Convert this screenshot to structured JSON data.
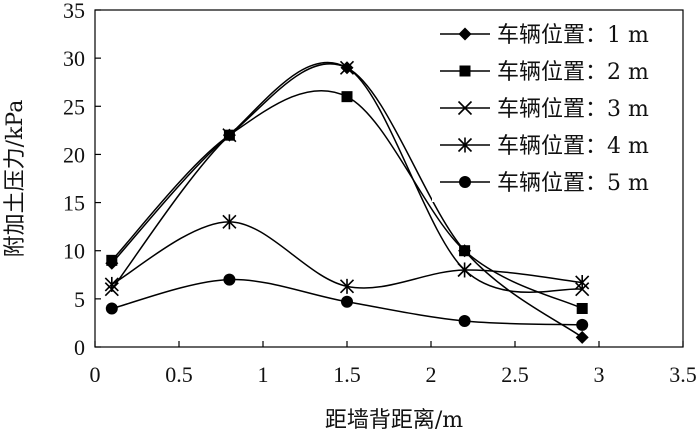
{
  "chart_data": {
    "type": "line",
    "xlabel": "距墙背距离/m",
    "ylabel": "附加土压力/kPa",
    "xlim": [
      0,
      3.5
    ],
    "ylim": [
      0,
      35
    ],
    "xticks": [
      "0",
      "0.5",
      "1",
      "1.5",
      "2",
      "2.5",
      "3",
      "3.5"
    ],
    "yticks": [
      "0",
      "5",
      "10",
      "15",
      "20",
      "25",
      "30",
      "35"
    ],
    "grid": false,
    "legend_position": "top-right",
    "x": [
      0.1,
      0.8,
      1.5,
      2.2,
      2.9
    ],
    "series": [
      {
        "name": "车辆位置：1 m",
        "marker": "diamond",
        "values": [
          8.7,
          22.0,
          29.0,
          10.0,
          1.0
        ]
      },
      {
        "name": "车辆位置：2 m",
        "marker": "square",
        "values": [
          9.0,
          22.0,
          26.0,
          10.0,
          4.0
        ]
      },
      {
        "name": "车辆位置：3 m",
        "marker": "x",
        "values": [
          6.0,
          22.0,
          29.0,
          8.0,
          6.0
        ]
      },
      {
        "name": "车辆位置：4 m",
        "marker": "star",
        "values": [
          6.5,
          13.0,
          6.3,
          8.0,
          6.7
        ]
      },
      {
        "name": "车辆位置：5 m",
        "marker": "circle",
        "values": [
          4.0,
          7.0,
          4.7,
          2.7,
          2.3
        ]
      }
    ]
  }
}
